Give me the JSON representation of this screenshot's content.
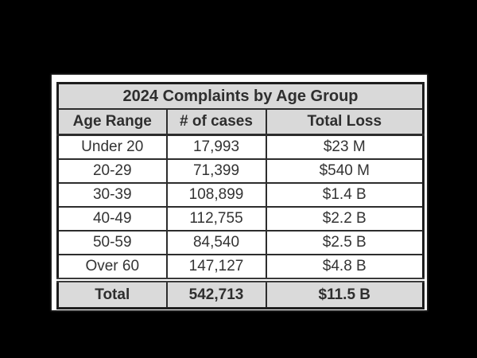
{
  "table": {
    "title": "2024 Complaints by Age Group",
    "columns": [
      "Age Range",
      "# of cases",
      "Total Loss"
    ],
    "rows": [
      {
        "age": "Under 20",
        "cases": "17,993",
        "loss": "$23 M"
      },
      {
        "age": "20-29",
        "cases": "71,399",
        "loss": "$540 M"
      },
      {
        "age": "30-39",
        "cases": "108,899",
        "loss": "$1.4 B"
      },
      {
        "age": "40-49",
        "cases": "112,755",
        "loss": "$2.2 B"
      },
      {
        "age": "50-59",
        "cases": "84,540",
        "loss": "$2.5 B"
      },
      {
        "age": "Over 60",
        "cases": "147,127",
        "loss": "$4.8 B"
      }
    ],
    "total": {
      "age": "Total",
      "cases": "542,713",
      "loss": "$11.5 B"
    }
  },
  "colors": {
    "background": "#000000",
    "panel": "#ffffff",
    "header_fill": "#d9d9d9",
    "total_fill": "#dadada",
    "border": "#1e1e1e",
    "text": "#2e2e2e"
  },
  "chart_data": {
    "type": "table",
    "title": "2024 Complaints by Age Group",
    "columns": [
      "Age Range",
      "# of cases",
      "Total Loss"
    ],
    "categories": [
      "Under 20",
      "20-29",
      "30-39",
      "40-49",
      "50-59",
      "Over 60"
    ],
    "series": [
      {
        "name": "# of cases",
        "values": [
          17993,
          71399,
          108899,
          112755,
          84540,
          147127
        ]
      },
      {
        "name": "Total Loss (USD)",
        "values": [
          23000000,
          540000000,
          1400000000,
          2200000000,
          2500000000,
          4800000000
        ]
      }
    ],
    "totals": {
      "cases": 542713,
      "loss_usd": 11500000000,
      "cases_label": "542,713",
      "loss_label": "$11.5 B"
    }
  }
}
